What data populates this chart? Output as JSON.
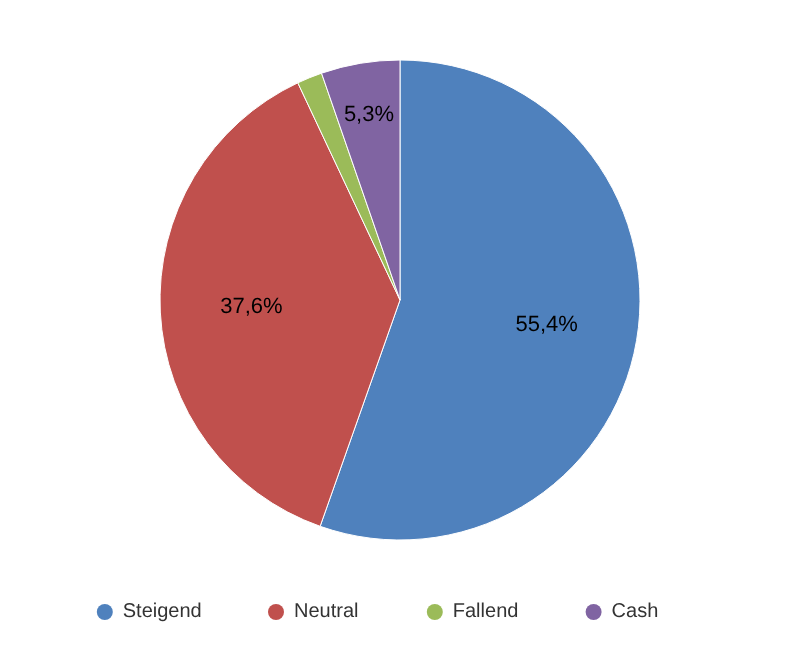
{
  "chart_data": {
    "type": "pie",
    "categories": [
      "Steigend",
      "Neutral",
      "Fallend",
      "Cash"
    ],
    "values": [
      55.4,
      37.6,
      1.7,
      5.3
    ],
    "colors": [
      "#4f81bd",
      "#c0504d",
      "#9bbb59",
      "#8064a2"
    ],
    "value_labels": [
      "55,4%",
      "37,6%",
      null,
      "5,3%"
    ],
    "legend": "bottom"
  }
}
